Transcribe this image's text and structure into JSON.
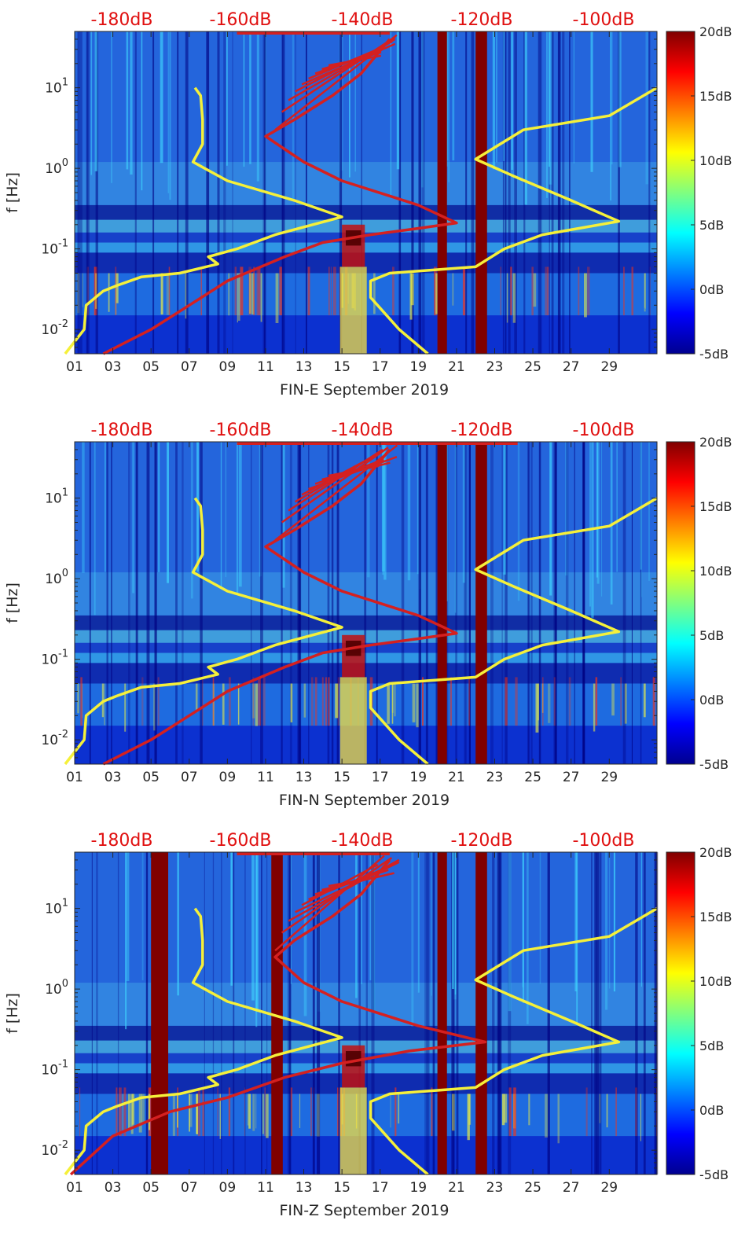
{
  "chart_data": [
    {
      "type": "heatmap",
      "title": "",
      "xlabel": "FIN-E September 2019",
      "ylabel": "f [Hz]",
      "xlim": [
        1,
        31.5
      ],
      "ylim": [
        0.005,
        50
      ],
      "yscale": "log",
      "x_ticks": [
        "01",
        "03",
        "05",
        "07",
        "09",
        "11",
        "13",
        "15",
        "17",
        "19",
        "21",
        "23",
        "25",
        "27",
        "29"
      ],
      "y_ticks": [
        {
          "value": 10,
          "base": "10",
          "exp": "1"
        },
        {
          "value": 1,
          "base": "10",
          "exp": "0"
        },
        {
          "value": 0.1,
          "base": "10",
          "exp": "-1"
        },
        {
          "value": 0.01,
          "base": "10",
          "exp": "-2"
        }
      ],
      "top_axis_labels": [
        "-180dB",
        "-160dB",
        "-140dB",
        "-120dB",
        "-100dB"
      ],
      "colorbar": {
        "range": [
          -5,
          20
        ],
        "ticks": [
          "20dB",
          "15dB",
          "10dB",
          "5dB",
          "0dB",
          "-5dB"
        ]
      },
      "gap_days": [
        20.0,
        22.0
      ],
      "series": [
        {
          "name": "noise model low (yellow)",
          "color": "#f5f03a",
          "points": [
            [
              0.5,
              0.005
            ],
            [
              1.5,
              0.01
            ],
            [
              1.6,
              0.02
            ],
            [
              2.5,
              0.03
            ],
            [
              3.2,
              0.035
            ],
            [
              4.5,
              0.045
            ],
            [
              6.5,
              0.05
            ],
            [
              8.5,
              0.065
            ],
            [
              8.0,
              0.08
            ],
            [
              9.5,
              0.1
            ],
            [
              11.5,
              0.15
            ],
            [
              15.0,
              0.25
            ],
            [
              12.5,
              0.4
            ],
            [
              9.0,
              0.7
            ],
            [
              7.2,
              1.2
            ],
            [
              7.7,
              2
            ],
            [
              7.7,
              4
            ],
            [
              7.6,
              8
            ],
            [
              7.3,
              10
            ]
          ]
        },
        {
          "name": "noise model high (yellow)",
          "color": "#f5f03a",
          "points": [
            [
              19.5,
              0.005
            ],
            [
              18.0,
              0.01
            ],
            [
              16.5,
              0.025
            ],
            [
              16.5,
              0.04
            ],
            [
              17.5,
              0.05
            ],
            [
              22.0,
              0.06
            ],
            [
              23.5,
              0.1
            ],
            [
              25.5,
              0.15
            ],
            [
              28.5,
              0.2
            ],
            [
              29.5,
              0.22
            ],
            [
              27.0,
              0.4
            ],
            [
              24.0,
              0.8
            ],
            [
              22.0,
              1.3
            ],
            [
              24.5,
              3
            ],
            [
              29.0,
              4.5
            ],
            [
              31.5,
              10
            ]
          ]
        },
        {
          "name": "signal spectrum (red)",
          "color": "#d42020",
          "points": [
            [
              2.5,
              0.005
            ],
            [
              5.0,
              0.01
            ],
            [
              7.0,
              0.02
            ],
            [
              9.0,
              0.04
            ],
            [
              12.0,
              0.08
            ],
            [
              14.0,
              0.12
            ],
            [
              16.5,
              0.15
            ],
            [
              19.0,
              0.18
            ],
            [
              21.0,
              0.21
            ],
            [
              19.0,
              0.35
            ],
            [
              15.0,
              0.7
            ],
            [
              13.0,
              1.2
            ],
            [
              11.0,
              2.5
            ],
            [
              12.5,
              4
            ],
            [
              14.5,
              8
            ],
            [
              16.0,
              15
            ],
            [
              17.5,
              40
            ]
          ]
        }
      ]
    },
    {
      "type": "heatmap",
      "title": "",
      "xlabel": "FIN-N September 2019",
      "ylabel": "f [Hz]",
      "xlim": [
        1,
        31.5
      ],
      "ylim": [
        0.005,
        50
      ],
      "yscale": "log",
      "x_ticks": [
        "01",
        "03",
        "05",
        "07",
        "09",
        "11",
        "13",
        "15",
        "17",
        "19",
        "21",
        "23",
        "25",
        "27",
        "29"
      ],
      "y_ticks": [
        {
          "value": 10,
          "base": "10",
          "exp": "1"
        },
        {
          "value": 1,
          "base": "10",
          "exp": "0"
        },
        {
          "value": 0.1,
          "base": "10",
          "exp": "-1"
        },
        {
          "value": 0.01,
          "base": "10",
          "exp": "-2"
        }
      ],
      "top_axis_labels": [
        "-180dB",
        "-160dB",
        "-140dB",
        "-120dB",
        "-100dB"
      ],
      "colorbar": {
        "range": [
          -5,
          20
        ],
        "ticks": [
          "20dB",
          "15dB",
          "10dB",
          "5dB",
          "0dB",
          "-5dB"
        ]
      },
      "gap_days": [
        20.0,
        22.0
      ],
      "series": [
        {
          "name": "noise model low (yellow)",
          "color": "#f5f03a",
          "points": [
            [
              0.5,
              0.005
            ],
            [
              1.5,
              0.01
            ],
            [
              1.6,
              0.02
            ],
            [
              2.5,
              0.03
            ],
            [
              3.2,
              0.035
            ],
            [
              4.5,
              0.045
            ],
            [
              6.5,
              0.05
            ],
            [
              8.5,
              0.065
            ],
            [
              8.0,
              0.08
            ],
            [
              9.5,
              0.1
            ],
            [
              11.5,
              0.15
            ],
            [
              15.0,
              0.25
            ],
            [
              12.5,
              0.4
            ],
            [
              9.0,
              0.7
            ],
            [
              7.2,
              1.2
            ],
            [
              7.7,
              2
            ],
            [
              7.7,
              4
            ],
            [
              7.6,
              8
            ],
            [
              7.3,
              10
            ]
          ]
        },
        {
          "name": "noise model high (yellow)",
          "color": "#f5f03a",
          "points": [
            [
              19.5,
              0.005
            ],
            [
              18.0,
              0.01
            ],
            [
              16.5,
              0.025
            ],
            [
              16.5,
              0.04
            ],
            [
              17.5,
              0.05
            ],
            [
              22.0,
              0.06
            ],
            [
              23.5,
              0.1
            ],
            [
              25.5,
              0.15
            ],
            [
              28.5,
              0.2
            ],
            [
              29.5,
              0.22
            ],
            [
              27.0,
              0.4
            ],
            [
              24.0,
              0.8
            ],
            [
              22.0,
              1.3
            ],
            [
              24.5,
              3
            ],
            [
              29.0,
              4.5
            ],
            [
              31.5,
              10
            ]
          ]
        },
        {
          "name": "signal spectrum (red)",
          "color": "#d42020",
          "points": [
            [
              2.5,
              0.005
            ],
            [
              5.0,
              0.01
            ],
            [
              7.0,
              0.02
            ],
            [
              9.0,
              0.04
            ],
            [
              12.0,
              0.08
            ],
            [
              14.0,
              0.12
            ],
            [
              16.5,
              0.15
            ],
            [
              19.0,
              0.18
            ],
            [
              21.0,
              0.21
            ],
            [
              19.0,
              0.35
            ],
            [
              15.0,
              0.7
            ],
            [
              13.0,
              1.2
            ],
            [
              11.0,
              2.5
            ],
            [
              12.5,
              4
            ],
            [
              14.5,
              8
            ],
            [
              16.0,
              15
            ],
            [
              17.5,
              40
            ]
          ]
        }
      ]
    },
    {
      "type": "heatmap",
      "title": "",
      "xlabel": "FIN-Z September 2019",
      "ylabel": "f [Hz]",
      "xlim": [
        1,
        31.5
      ],
      "ylim": [
        0.005,
        50
      ],
      "yscale": "log",
      "x_ticks": [
        "01",
        "03",
        "05",
        "07",
        "09",
        "11",
        "13",
        "15",
        "17",
        "19",
        "21",
        "23",
        "25",
        "27",
        "29"
      ],
      "y_ticks": [
        {
          "value": 10,
          "base": "10",
          "exp": "1"
        },
        {
          "value": 1,
          "base": "10",
          "exp": "0"
        },
        {
          "value": 0.1,
          "base": "10",
          "exp": "-1"
        },
        {
          "value": 0.01,
          "base": "10",
          "exp": "-2"
        }
      ],
      "top_axis_labels": [
        "-180dB",
        "-160dB",
        "-140dB",
        "-120dB",
        "-100dB"
      ],
      "colorbar": {
        "range": [
          -5,
          20
        ],
        "ticks": [
          "20dB",
          "15dB",
          "10dB",
          "5dB",
          "0dB",
          "-5dB"
        ]
      },
      "gap_days": [
        5.0,
        11.3,
        20.0,
        22.0
      ],
      "series": [
        {
          "name": "noise model low (yellow)",
          "color": "#f5f03a",
          "points": [
            [
              0.5,
              0.005
            ],
            [
              1.5,
              0.01
            ],
            [
              1.6,
              0.02
            ],
            [
              2.5,
              0.03
            ],
            [
              3.2,
              0.035
            ],
            [
              4.5,
              0.045
            ],
            [
              6.5,
              0.05
            ],
            [
              8.5,
              0.065
            ],
            [
              8.0,
              0.08
            ],
            [
              9.5,
              0.1
            ],
            [
              11.5,
              0.15
            ],
            [
              15.0,
              0.25
            ],
            [
              12.5,
              0.4
            ],
            [
              9.0,
              0.7
            ],
            [
              7.2,
              1.2
            ],
            [
              7.7,
              2
            ],
            [
              7.7,
              4
            ],
            [
              7.6,
              8
            ],
            [
              7.3,
              10
            ]
          ]
        },
        {
          "name": "noise model high (yellow)",
          "color": "#f5f03a",
          "points": [
            [
              19.5,
              0.005
            ],
            [
              18.0,
              0.01
            ],
            [
              16.5,
              0.025
            ],
            [
              16.5,
              0.04
            ],
            [
              17.5,
              0.05
            ],
            [
              22.0,
              0.06
            ],
            [
              23.5,
              0.1
            ],
            [
              25.5,
              0.15
            ],
            [
              28.5,
              0.2
            ],
            [
              29.5,
              0.22
            ],
            [
              27.0,
              0.4
            ],
            [
              24.0,
              0.8
            ],
            [
              22.0,
              1.3
            ],
            [
              24.5,
              3
            ],
            [
              29.0,
              4.5
            ],
            [
              31.5,
              10
            ]
          ]
        },
        {
          "name": "signal spectrum (red)",
          "color": "#d42020",
          "points": [
            [
              0.8,
              0.005
            ],
            [
              3.0,
              0.015
            ],
            [
              6.0,
              0.03
            ],
            [
              9.0,
              0.045
            ],
            [
              12.0,
              0.08
            ],
            [
              15.0,
              0.12
            ],
            [
              18.5,
              0.17
            ],
            [
              22.5,
              0.22
            ],
            [
              19.0,
              0.35
            ],
            [
              15.0,
              0.7
            ],
            [
              13.0,
              1.2
            ],
            [
              11.5,
              2.5
            ],
            [
              12.5,
              4
            ],
            [
              14.5,
              8
            ],
            [
              16.0,
              15
            ],
            [
              17.5,
              40
            ]
          ]
        }
      ]
    }
  ]
}
